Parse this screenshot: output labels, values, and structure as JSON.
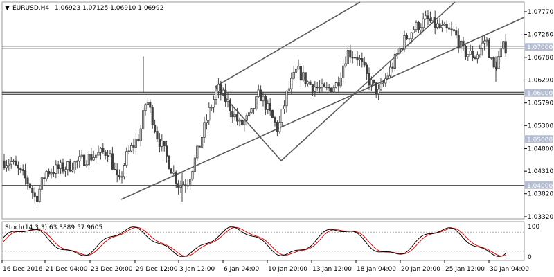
{
  "header": {
    "symbol": "EURUSD,H4",
    "ohlc": "1.06923 1.07125 1.06910 1.06992"
  },
  "price_axis": {
    "ticks": [
      "1.07770",
      "1.07280",
      "1.06780",
      "1.06290",
      "1.05790",
      "1.05300",
      "1.04800",
      "1.04310",
      "1.03820",
      "1.03320"
    ],
    "levels": [
      {
        "label": "1.07000",
        "value": 1.07
      },
      {
        "label": "1.06000",
        "value": 1.06
      },
      {
        "label": "1.05000",
        "value": 1.05
      },
      {
        "label": "1.04000",
        "value": 1.04
      }
    ]
  },
  "stochastic": {
    "title": "Stoch(14,3,3) 63.3889 57.9605",
    "top_label": "100",
    "bottom_label": "0"
  },
  "time_axis": [
    "16 Dec 2016",
    "21 Dec 04:00",
    "23 Dec 20:00",
    "29 Dec 12:00",
    "3 Jan 12:00",
    "6 Jan 04:00",
    "10 Jan 20:00",
    "13 Jan 12:00",
    "18 Jan 04:00",
    "20 Jan 20:00",
    "25 Jan 12:00",
    "30 Jan 04:00"
  ],
  "colors": {
    "candle": "#404040",
    "level_line": "#202020",
    "label_box": "#b4bdd2",
    "channel_line": "#5a5a5a",
    "stoch_main": "#000000",
    "stoch_signal": "#e00000"
  },
  "chart_data": {
    "type": "candlestick",
    "symbol": "EURUSD",
    "timeframe": "H4",
    "ylim": [
      1.0332,
      1.0802
    ],
    "last_close": 1.06992,
    "horizontal_levels": [
      1.07,
      1.06,
      1.05,
      1.04
    ],
    "stochastic": {
      "main": 63.3889,
      "signal": 57.9605,
      "levels": [
        20,
        80
      ]
    }
  }
}
